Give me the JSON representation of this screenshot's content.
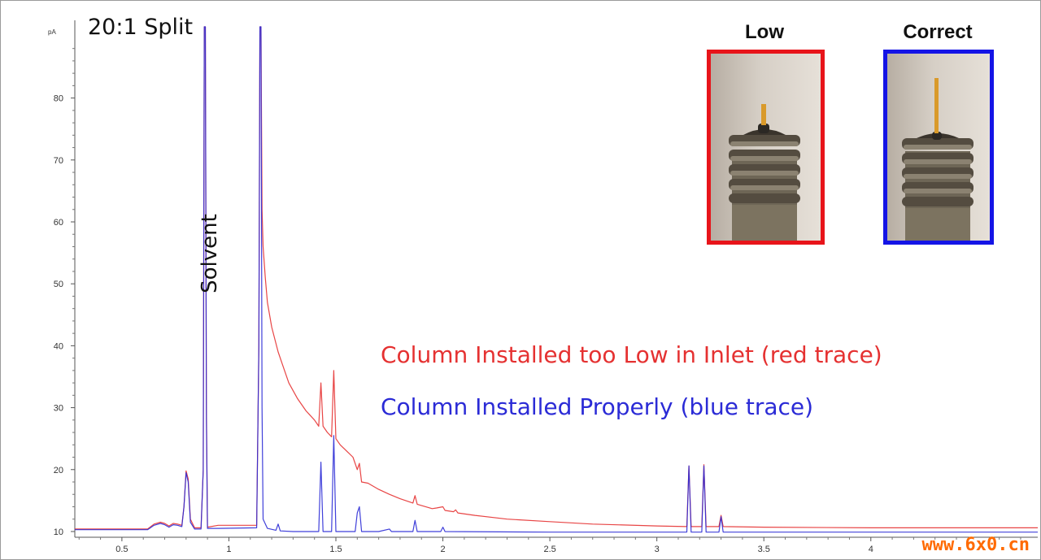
{
  "chart_data": {
    "type": "line",
    "title": "20:1 Split",
    "ylabel": "pA",
    "xlabel": "",
    "xlim": [
      0.28,
      4.78
    ],
    "ylim": [
      9.6,
      91.5
    ],
    "x_ticks": [
      {
        "value": 0.5,
        "label": "0.5"
      },
      {
        "value": 1,
        "label": "1"
      },
      {
        "value": 1.5,
        "label": "1.5"
      },
      {
        "value": 2,
        "label": "2"
      },
      {
        "value": 2.5,
        "label": "2.5"
      },
      {
        "value": 3,
        "label": "3"
      },
      {
        "value": 3.5,
        "label": "3.5"
      },
      {
        "value": 4,
        "label": "4"
      }
    ],
    "y_ticks": [
      {
        "value": 10,
        "label": "10"
      },
      {
        "value": 20,
        "label": "20"
      },
      {
        "value": 30,
        "label": "30"
      },
      {
        "value": 40,
        "label": "40"
      },
      {
        "value": 50,
        "label": "50"
      },
      {
        "value": 60,
        "label": "60"
      },
      {
        "value": 70,
        "label": "70"
      },
      {
        "value": 80,
        "label": "80"
      }
    ],
    "annotations": {
      "solvent": "Solvent"
    },
    "series": [
      {
        "name": "Column Installed too Low in Inlet (red trace)",
        "color": "#e53131",
        "points": [
          [
            0.28,
            10.4
          ],
          [
            0.62,
            10.4
          ],
          [
            0.65,
            11.2
          ],
          [
            0.68,
            11.5
          ],
          [
            0.7,
            11.3
          ],
          [
            0.72,
            10.9
          ],
          [
            0.74,
            11.3
          ],
          [
            0.76,
            11.2
          ],
          [
            0.78,
            11.0
          ],
          [
            0.79,
            14
          ],
          [
            0.8,
            19.8
          ],
          [
            0.81,
            18.5
          ],
          [
            0.82,
            12
          ],
          [
            0.84,
            10.6
          ],
          [
            0.87,
            10.6
          ],
          [
            0.88,
            20
          ],
          [
            0.885,
            91.5
          ],
          [
            0.89,
            91.5
          ],
          [
            0.895,
            30
          ],
          [
            0.9,
            10.7
          ],
          [
            0.95,
            11
          ],
          [
            1.13,
            11
          ],
          [
            1.14,
            40
          ],
          [
            1.145,
            91.5
          ],
          [
            1.15,
            91.5
          ],
          [
            1.155,
            62
          ],
          [
            1.16,
            56
          ],
          [
            1.17,
            51
          ],
          [
            1.18,
            47
          ],
          [
            1.2,
            43
          ],
          [
            1.23,
            39
          ],
          [
            1.25,
            37
          ],
          [
            1.28,
            34
          ],
          [
            1.32,
            31.5
          ],
          [
            1.36,
            29.5
          ],
          [
            1.4,
            28
          ],
          [
            1.42,
            27
          ],
          [
            1.43,
            34
          ],
          [
            1.44,
            27
          ],
          [
            1.46,
            26
          ],
          [
            1.48,
            25.3
          ],
          [
            1.49,
            36
          ],
          [
            1.5,
            25
          ],
          [
            1.52,
            24
          ],
          [
            1.55,
            23
          ],
          [
            1.58,
            22
          ],
          [
            1.6,
            20
          ],
          [
            1.61,
            21
          ],
          [
            1.62,
            18
          ],
          [
            1.65,
            17.8
          ],
          [
            1.7,
            16.8
          ],
          [
            1.75,
            16
          ],
          [
            1.8,
            15.3
          ],
          [
            1.86,
            14.6
          ],
          [
            1.87,
            15.8
          ],
          [
            1.88,
            14.4
          ],
          [
            1.95,
            13.7
          ],
          [
            1.97,
            13.8
          ],
          [
            2.0,
            14
          ],
          [
            2.01,
            13.4
          ],
          [
            2.05,
            13.2
          ],
          [
            2.06,
            13.5
          ],
          [
            2.07,
            13
          ],
          [
            2.15,
            12.6
          ],
          [
            2.3,
            12
          ],
          [
            2.5,
            11.6
          ],
          [
            2.7,
            11.2
          ],
          [
            3.0,
            10.9
          ],
          [
            3.14,
            10.8
          ],
          [
            3.15,
            20.6
          ],
          [
            3.16,
            10.8
          ],
          [
            3.21,
            10.8
          ],
          [
            3.22,
            20.8
          ],
          [
            3.23,
            10.8
          ],
          [
            3.29,
            10.8
          ],
          [
            3.3,
            12.6
          ],
          [
            3.31,
            10.8
          ],
          [
            3.5,
            10.7
          ],
          [
            4.0,
            10.6
          ],
          [
            4.78,
            10.6
          ]
        ]
      },
      {
        "name": "Column Installed Properly (blue trace)",
        "color": "#2b2bd6",
        "points": [
          [
            0.28,
            10.3
          ],
          [
            0.62,
            10.3
          ],
          [
            0.65,
            11
          ],
          [
            0.68,
            11.3
          ],
          [
            0.7,
            11.1
          ],
          [
            0.72,
            10.7
          ],
          [
            0.74,
            11.1
          ],
          [
            0.76,
            11
          ],
          [
            0.78,
            10.8
          ],
          [
            0.79,
            14
          ],
          [
            0.8,
            19.5
          ],
          [
            0.81,
            18
          ],
          [
            0.82,
            11.5
          ],
          [
            0.84,
            10.4
          ],
          [
            0.87,
            10.4
          ],
          [
            0.88,
            20
          ],
          [
            0.885,
            91.5
          ],
          [
            0.89,
            91.5
          ],
          [
            0.895,
            28
          ],
          [
            0.9,
            10.5
          ],
          [
            0.95,
            10.5
          ],
          [
            1.13,
            10.6
          ],
          [
            1.14,
            40
          ],
          [
            1.145,
            91.5
          ],
          [
            1.15,
            91.5
          ],
          [
            1.155,
            30
          ],
          [
            1.16,
            12
          ],
          [
            1.18,
            10.5
          ],
          [
            1.22,
            10.2
          ],
          [
            1.23,
            11.2
          ],
          [
            1.24,
            10.1
          ],
          [
            1.3,
            10
          ],
          [
            1.42,
            10
          ],
          [
            1.43,
            21.2
          ],
          [
            1.44,
            10
          ],
          [
            1.48,
            10
          ],
          [
            1.49,
            25.5
          ],
          [
            1.5,
            10
          ],
          [
            1.59,
            10
          ],
          [
            1.6,
            13
          ],
          [
            1.61,
            14
          ],
          [
            1.62,
            10
          ],
          [
            1.7,
            10
          ],
          [
            1.75,
            10.4
          ],
          [
            1.76,
            10
          ],
          [
            1.86,
            10
          ],
          [
            1.87,
            11.8
          ],
          [
            1.88,
            10
          ],
          [
            1.99,
            10
          ],
          [
            2.0,
            10.7
          ],
          [
            2.01,
            10
          ],
          [
            2.5,
            9.9
          ],
          [
            3.14,
            9.9
          ],
          [
            3.15,
            20.6
          ],
          [
            3.16,
            9.9
          ],
          [
            3.21,
            9.9
          ],
          [
            3.22,
            20.6
          ],
          [
            3.23,
            9.9
          ],
          [
            3.29,
            9.9
          ],
          [
            3.3,
            12.4
          ],
          [
            3.31,
            9.9
          ],
          [
            4.78,
            9.9
          ]
        ]
      }
    ]
  },
  "photos": [
    {
      "label": "Low",
      "border_color": "#e8141a"
    },
    {
      "label": "Correct",
      "border_color": "#1414e6"
    }
  ],
  "watermark": "www.6x0.cn"
}
